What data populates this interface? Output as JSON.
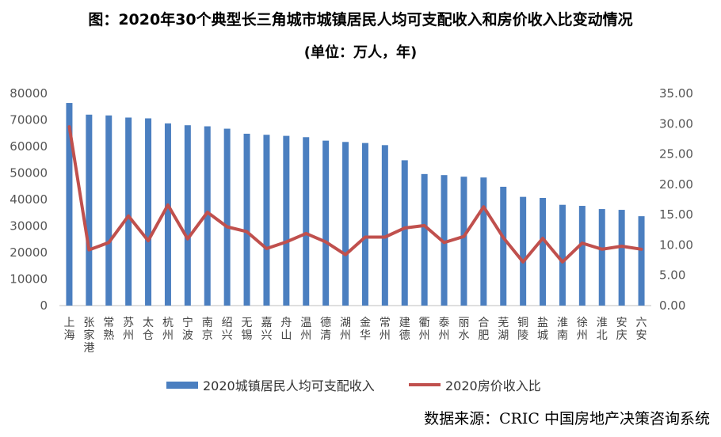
{
  "title": "图：2020年30个典型长三角城市城镇居民人均可支配收入和房价收入比变动情况",
  "subtitle": "(单位：万人，年)",
  "source": "数据来源：CRIC 中国房地产决策咨询系统",
  "colors": {
    "bar": "#4b7fc0",
    "line": "#c0504d"
  },
  "chart_data": {
    "type": "bar",
    "categories": [
      "上海",
      "张家港",
      "常熟",
      "苏州",
      "太仓",
      "杭州",
      "宁波",
      "南京",
      "绍兴",
      "无锡",
      "嘉兴",
      "舟山",
      "温州",
      "德清",
      "湖州",
      "金华",
      "常州",
      "建德",
      "衢州",
      "泰州",
      "丽水",
      "合肥",
      "芜湖",
      "铜陵",
      "盐城",
      "淮南",
      "徐州",
      "淮北",
      "安庆",
      "六安"
    ],
    "series": [
      {
        "name": "2020城镇居民人均可支配收入",
        "type": "bar",
        "axis": "left",
        "values": [
          76400,
          72000,
          71700,
          70900,
          70600,
          68700,
          68000,
          67600,
          66700,
          64800,
          64400,
          64000,
          63500,
          62200,
          61700,
          61300,
          60500,
          54800,
          49600,
          49200,
          48600,
          48300,
          44800,
          41000,
          40600,
          38000,
          37600,
          36400,
          36100,
          33700
        ]
      },
      {
        "name": "2020房价收入比",
        "type": "line",
        "axis": "right",
        "values": [
          29.5,
          9.2,
          10.4,
          14.8,
          10.7,
          16.6,
          11.0,
          15.4,
          13.0,
          12.2,
          9.4,
          10.5,
          11.9,
          10.5,
          8.4,
          11.3,
          11.3,
          12.8,
          13.2,
          10.4,
          11.4,
          16.3,
          11.2,
          7.2,
          11.1,
          7.2,
          10.3,
          9.3,
          9.8,
          9.3
        ]
      }
    ],
    "y_left": {
      "min": 0,
      "max": 80000,
      "step": 10000,
      "ticks": [
        "0",
        "10000",
        "20000",
        "30000",
        "40000",
        "50000",
        "60000",
        "70000",
        "80000"
      ]
    },
    "y_right": {
      "min": 0,
      "max": 35,
      "step": 5,
      "ticks": [
        "0.00",
        "5.00",
        "10.00",
        "15.00",
        "20.00",
        "25.00",
        "30.00",
        "35.00"
      ]
    },
    "grid": false,
    "legend": "bottom"
  }
}
